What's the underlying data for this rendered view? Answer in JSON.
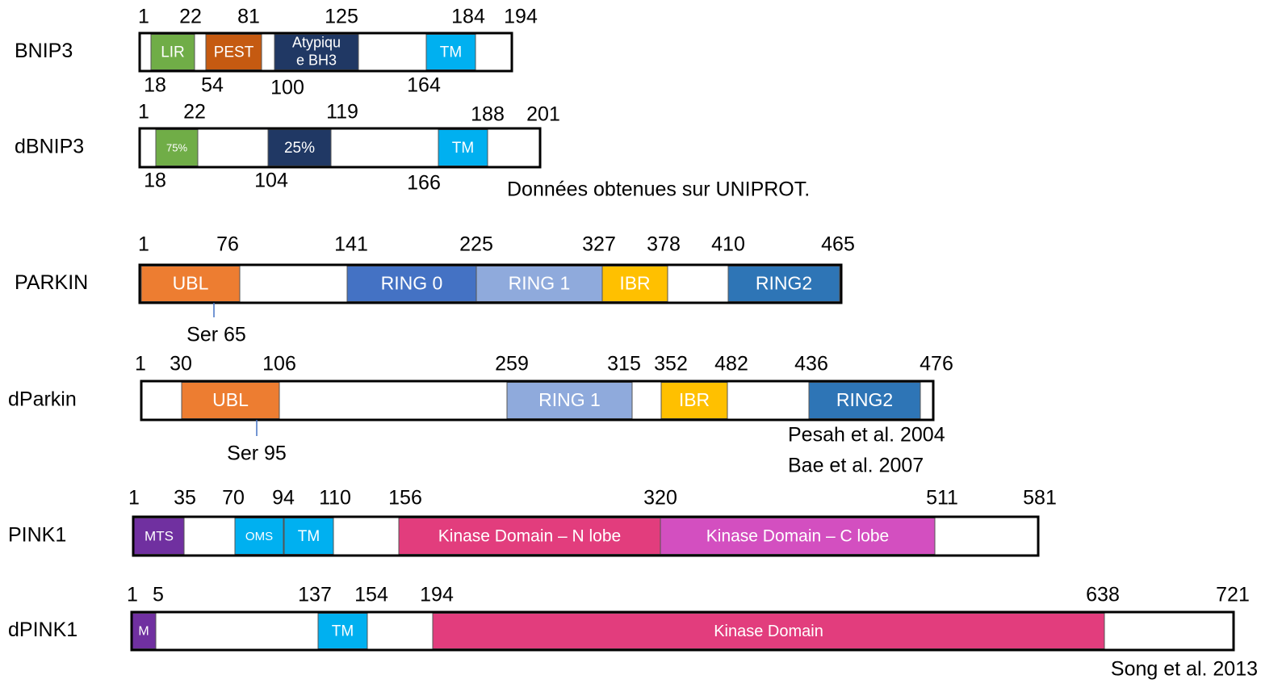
{
  "proteins": [
    {
      "name": "BNIP3",
      "top_labels": [
        1,
        22,
        81,
        125,
        184,
        194
      ],
      "bottom_labels": [
        18,
        54,
        100,
        164
      ],
      "domains": [
        {
          "label": "LIR"
        },
        {
          "label": "PEST"
        },
        {
          "label_lines": [
            "Atypiqu",
            "e BH3"
          ]
        },
        {
          "label": "TM"
        }
      ]
    },
    {
      "name": "dBNIP3",
      "top_labels": [
        1,
        22,
        119,
        188,
        201
      ],
      "bottom_labels": [
        18,
        104,
        166
      ],
      "domains": [
        {
          "label": "75%"
        },
        {
          "label": "25%"
        },
        {
          "label": "TM"
        }
      ]
    },
    {
      "name": "PARKIN",
      "top_labels": [
        1,
        76,
        141,
        225,
        327,
        378,
        410,
        465
      ],
      "bottom_labels": [],
      "domains": [
        {
          "label": "UBL"
        },
        {
          "label": "RING 0"
        },
        {
          "label": "RING 1"
        },
        {
          "label": "IBR"
        },
        {
          "label": "RING2"
        }
      ],
      "site": "Ser 65"
    },
    {
      "name": "dParkin",
      "top_labels": [
        1,
        30,
        106,
        259,
        315,
        352,
        482,
        436,
        476
      ],
      "bottom_labels": [],
      "domains": [
        {
          "label": "UBL"
        },
        {
          "label": "RING 1"
        },
        {
          "label": "IBR"
        },
        {
          "label": "RING2"
        }
      ],
      "site": "Ser 95"
    },
    {
      "name": "PINK1",
      "top_labels": [
        1,
        35,
        70,
        94,
        110,
        156,
        320,
        511,
        581
      ],
      "bottom_labels": [],
      "domains": [
        {
          "label": "MTS"
        },
        {
          "label": "OMS"
        },
        {
          "label": "TM"
        },
        {
          "label": "Kinase Domain – N lobe"
        },
        {
          "label": "Kinase Domain – C lobe"
        }
      ]
    },
    {
      "name": "dPINK1",
      "top_labels": [
        1,
        5,
        137,
        154,
        194,
        638,
        721
      ],
      "bottom_labels": [],
      "domains": [
        {
          "label": "M"
        },
        {
          "label": "TM"
        },
        {
          "label": "Kinase Domain"
        }
      ]
    }
  ],
  "notes": [
    "Données obtenues sur UNIPROT.",
    "Pesah et al. 2004",
    "Bae et al. 2007",
    "Song et al. 2013"
  ]
}
